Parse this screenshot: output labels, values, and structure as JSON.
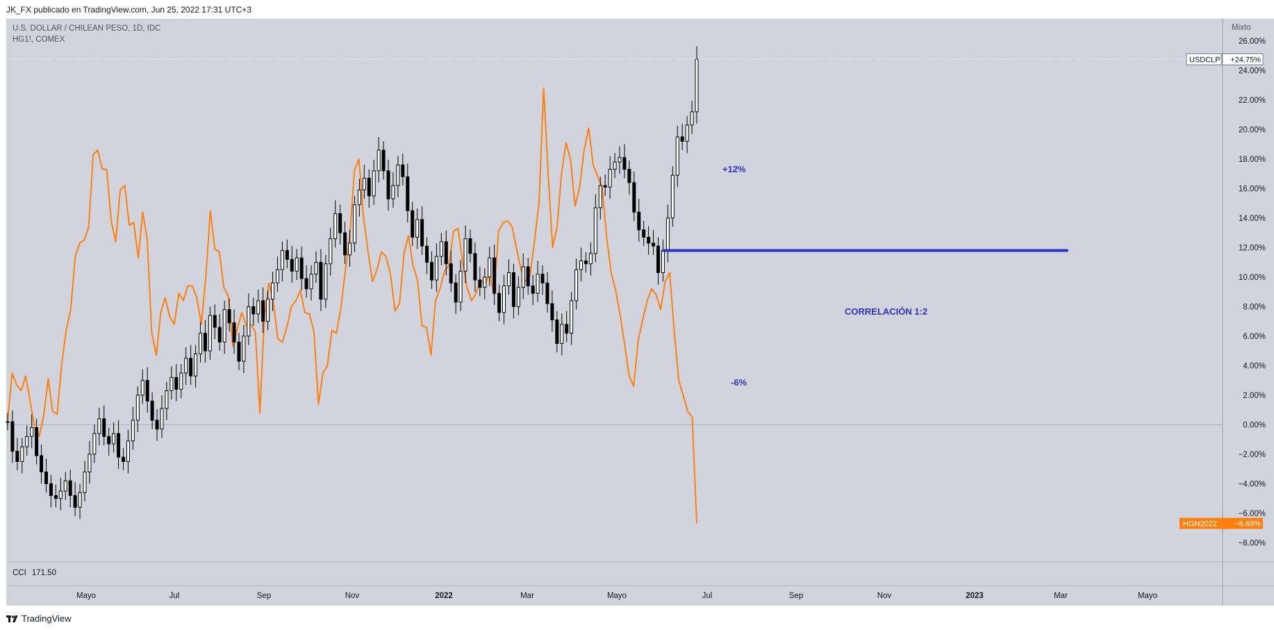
{
  "header": {
    "publish_line": "JK_FX publicado en TradingView.com, Jun 25, 2022 17:31 UTC+3"
  },
  "legend": {
    "line1": "U.S. DOLLAR / CHILEAN PESO, 1D, IDC",
    "line2": "HG1!, COMEX"
  },
  "scale_mode": "Mixto",
  "lower_pane": {
    "name": "CCI",
    "value": "171.50"
  },
  "footer": {
    "brand": "TradingView"
  },
  "annotations": {
    "up": "+12%",
    "down": "-6%",
    "corr": "CORRELACIÓN 1:2"
  },
  "colors": {
    "background": "#d1d4dc",
    "candle": "#000000",
    "copper": "#ff7f0e",
    "level": "#2b34c4",
    "zero": "#9598a1"
  },
  "chart_data": {
    "type": "line",
    "y_axis": {
      "unit": "%",
      "ticks": [
        26,
        24,
        22,
        20,
        18,
        16,
        14,
        12,
        10,
        8,
        6,
        4,
        2,
        0,
        -2,
        -4,
        -6,
        -8
      ],
      "range": [
        -9.3,
        27.5
      ],
      "position": "right"
    },
    "x_axis": {
      "ticks": [
        "Mayo",
        "Jul",
        "Sep",
        "Nov",
        "2022",
        "Mar",
        "Mayo",
        "Jul",
        "Sep",
        "Nov",
        "2023",
        "Mar",
        "Mayo"
      ],
      "bold_ticks": [
        "2022",
        "2023"
      ]
    },
    "series": [
      {
        "name": "USDCLP",
        "style": "candles",
        "last_value": "+24.75%",
        "last": 24.75,
        "values": [
          0.2,
          -1.8,
          -2.5,
          -1.5,
          -0.8,
          -0.2,
          -2.1,
          -3.2,
          -4,
          -4.8,
          -5,
          -4.5,
          -3.8,
          -4.8,
          -5.6,
          -4.6,
          -3.2,
          -2,
          -0.6,
          0.4,
          -0.8,
          -1.3,
          -0.6,
          -2.2,
          -2.5,
          -1.1,
          0.3,
          2,
          3,
          1.6,
          0.3,
          -0.3,
          1.1,
          2.3,
          3.2,
          2.4,
          3.5,
          4.5,
          3.3,
          4.8,
          6.2,
          5,
          7.4,
          6.6,
          5.6,
          7.8,
          6.9,
          5.6,
          4.3,
          6,
          8,
          7.5,
          8.4,
          7,
          8.5,
          9.6,
          10.5,
          11.8,
          11.2,
          10.4,
          11.3,
          9.9,
          9.2,
          10.2,
          11,
          8.5,
          10.9,
          12.6,
          14.3,
          13,
          11.5,
          12.3,
          14.9,
          15.9,
          16.7,
          15.5,
          17.2,
          18.6,
          17.2,
          15.3,
          16.2,
          17.6,
          16.8,
          14.5,
          12.7,
          13.9,
          12.1,
          11,
          9.8,
          11.4,
          12.4,
          10.9,
          9.6,
          8.3,
          10.4,
          12.6,
          11.6,
          9.8,
          9.3,
          10,
          11.3,
          8.9,
          7.6,
          9.4,
          10.3,
          8,
          9.3,
          10.7,
          9.4,
          8.9,
          10.2,
          9.6,
          8.2,
          7.1,
          5.5,
          6.8,
          6.2,
          8.4,
          10.5,
          11.1,
          10.9,
          11.6,
          14.7,
          16.2,
          16.1,
          17.3,
          17.8,
          18.1,
          17.3,
          16.4,
          14.4,
          13.2,
          12.7,
          12.3,
          12.1,
          10.3,
          11.8,
          14,
          16.9,
          19.5,
          19.2,
          20.3,
          21.2,
          24.75
        ]
      },
      {
        "name": "HGN2022",
        "style": "line",
        "last_value": "-6.69%",
        "last": -6.69,
        "values": [
          0.3,
          3.5,
          2.7,
          2.3,
          3.3,
          1.6,
          -0.2,
          -0.8,
          0.6,
          3.1,
          0.9,
          0.7,
          4.1,
          6.4,
          7.8,
          11.4,
          12.3,
          12.5,
          13.4,
          18.3,
          18.6,
          17.3,
          17.3,
          13.8,
          12.4,
          15.9,
          16.2,
          13.5,
          13.7,
          11.3,
          14.4,
          12.5,
          6.2,
          4.7,
          7.6,
          8.6,
          7.3,
          6.8,
          8.9,
          8.4,
          9.4,
          9.4,
          8.6,
          6.8,
          10,
          14.5,
          11.9,
          11.7,
          9.3,
          8.7,
          5.3,
          6.5,
          7.6,
          6.7,
          6.8,
          6.3,
          0.8,
          7.3,
          9.6,
          8.3,
          5.8,
          5.6,
          6.6,
          8,
          8.4,
          9.1,
          7.6,
          7.5,
          6.3,
          1.4,
          3.5,
          4,
          6.4,
          6.2,
          7.9,
          10.5,
          12.9,
          17.2,
          18,
          14.1,
          11.8,
          9.7,
          10.5,
          11.7,
          11.4,
          10.2,
          7.7,
          8.2,
          11.6,
          12.8,
          10.8,
          9.8,
          6.7,
          6.6,
          4.7,
          8.4,
          9.2,
          10.4,
          10.8,
          13.1,
          13.3,
          11.1,
          9.3,
          8.4,
          8.9,
          9.8,
          9.5,
          10.3,
          8.8,
          13.1,
          13.7,
          13.8,
          13.4,
          11.9,
          10.5,
          9.7,
          10.1,
          12.5,
          15.1,
          22.8,
          17.1,
          12,
          13.4,
          17.1,
          19.1,
          17.9,
          14.8,
          16.1,
          18.6,
          20.1,
          17.6,
          16.8,
          16.1,
          12.7,
          10.3,
          9.1,
          7.4,
          5.4,
          3.3,
          2.6,
          5.7,
          7.1,
          8.4,
          9.2,
          8.8,
          7.8,
          9.7,
          10.3,
          6.3,
          3,
          2,
          0.9,
          0.5,
          -6.69
        ]
      }
    ],
    "level_line": {
      "value": 11.8,
      "color": "#2b34c4"
    },
    "zero_line": 0
  }
}
